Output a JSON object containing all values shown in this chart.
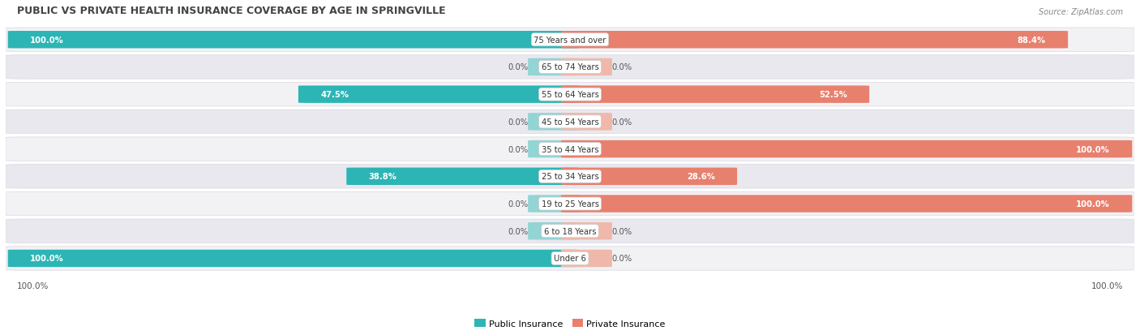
{
  "title": "PUBLIC VS PRIVATE HEALTH INSURANCE COVERAGE BY AGE IN SPRINGVILLE",
  "source": "Source: ZipAtlas.com",
  "categories": [
    "Under 6",
    "6 to 18 Years",
    "19 to 25 Years",
    "25 to 34 Years",
    "35 to 44 Years",
    "45 to 54 Years",
    "55 to 64 Years",
    "65 to 74 Years",
    "75 Years and over"
  ],
  "public_values": [
    100.0,
    0.0,
    0.0,
    38.8,
    0.0,
    0.0,
    47.5,
    0.0,
    100.0
  ],
  "private_values": [
    0.0,
    0.0,
    100.0,
    28.6,
    100.0,
    0.0,
    52.5,
    0.0,
    88.4
  ],
  "public_color_full": "#2db5b5",
  "public_color_stub": "#93d4d4",
  "private_color_full": "#e8806e",
  "private_color_stub": "#f0b8aa",
  "row_bg_odd": "#f2f2f5",
  "row_bg_even": "#e8e8ee",
  "row_border": "#d8d8e0",
  "label_white": "#ffffff",
  "label_dark": "#555555",
  "title_color": "#444444",
  "source_color": "#888888",
  "center_bubble_color": "#ffffff",
  "figsize": [
    14.06,
    4.14
  ],
  "dpi": 100
}
